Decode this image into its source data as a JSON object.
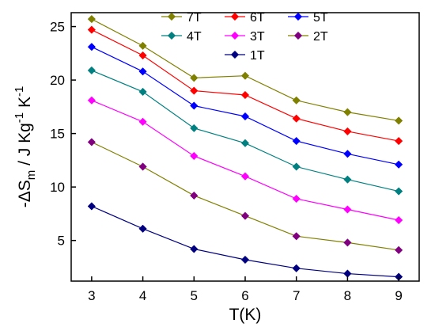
{
  "chart_data": {
    "type": "line",
    "title": "",
    "x": [
      3,
      4,
      5,
      6,
      7,
      8,
      9
    ],
    "xlim": [
      2.6,
      9.4
    ],
    "ylim": [
      1.2,
      26.3
    ],
    "xticks": [
      3,
      4,
      5,
      6,
      7,
      8,
      9
    ],
    "yticks": [
      5,
      10,
      15,
      20,
      25
    ],
    "xlabel": "T(K)",
    "ylabel": {
      "prefix": "-ΔS",
      "sub": "m",
      "unit": " / J Kg",
      "sup1": "-1",
      "mid": " K",
      "sup2": "-1"
    },
    "grid": false,
    "legend_position": "top-right",
    "series": [
      {
        "name": "7T",
        "color": "#808000",
        "marker_color": "#808000",
        "values": [
          25.7,
          23.2,
          20.2,
          20.4,
          18.1,
          17.0,
          16.2
        ]
      },
      {
        "name": "6T",
        "color": "#ff0000",
        "marker_color": "#ff0000",
        "values": [
          24.7,
          22.3,
          19.0,
          18.6,
          16.4,
          15.2,
          14.3
        ]
      },
      {
        "name": "5T",
        "color": "#0000ff",
        "marker_color": "#0000ff",
        "values": [
          23.1,
          20.8,
          17.6,
          16.6,
          14.3,
          13.1,
          12.1
        ]
      },
      {
        "name": "4T",
        "color": "#008080",
        "marker_color": "#008080",
        "values": [
          20.9,
          18.9,
          15.5,
          14.1,
          11.9,
          10.7,
          9.6
        ]
      },
      {
        "name": "3T",
        "color": "#ff00ff",
        "marker_color": "#ff00ff",
        "values": [
          18.1,
          16.1,
          12.9,
          11.0,
          8.9,
          7.9,
          6.9
        ]
      },
      {
        "name": "2T",
        "color": "#808000",
        "marker_color": "#800080",
        "values": [
          14.2,
          11.9,
          9.2,
          7.3,
          5.4,
          4.8,
          4.1
        ]
      },
      {
        "name": "1T",
        "color": "#000080",
        "marker_color": "#000080",
        "values": [
          8.2,
          6.1,
          4.2,
          3.2,
          2.4,
          1.9,
          1.6
        ]
      }
    ]
  }
}
